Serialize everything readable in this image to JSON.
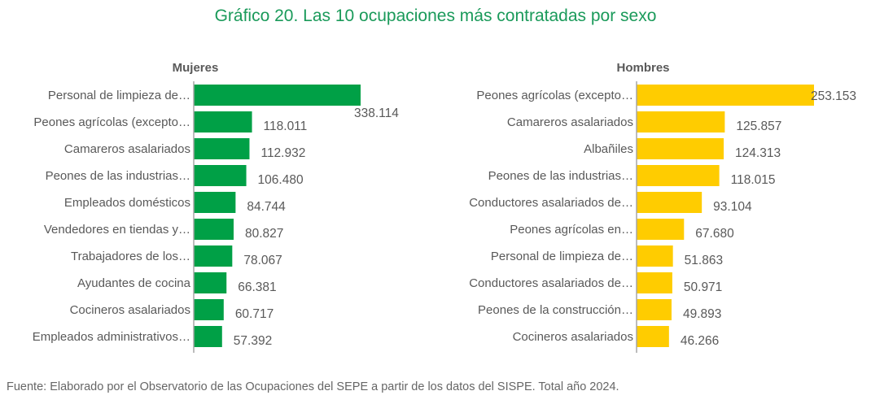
{
  "title": "Gráfico 20. Las 10 ocupaciones más contratadas por sexo",
  "source": "Fuente: Elaborado por el Observatorio de las Ocupaciones del SEPE a partir de los datos del SISPE. Total año 2024.",
  "chart_data": [
    {
      "type": "bar",
      "orientation": "horizontal",
      "title": "Mujeres",
      "color": "#00a046",
      "categories": [
        "Personal de limpieza de…",
        "Peones agrícolas (excepto…",
        "Camareros asalariados",
        "Peones de las industrias…",
        "Empleados domésticos",
        "Vendedores en tiendas y…",
        "Trabajadores de los…",
        "Ayudantes de cocina",
        "Cocineros asalariados",
        "Empleados administrativos…"
      ],
      "values": [
        338114,
        118011,
        112932,
        106480,
        84744,
        80827,
        78067,
        66381,
        60717,
        57392
      ],
      "value_labels": [
        "338.114",
        "118.011",
        "112.932",
        "106.480",
        "84.744",
        "80.827",
        "78.067",
        "66.381",
        "60.717",
        "57.392"
      ],
      "grid": false
    },
    {
      "type": "bar",
      "orientation": "horizontal",
      "title": "Hombres",
      "color": "#ffcc00",
      "categories": [
        "Peones agrícolas (excepto…",
        "Camareros asalariados",
        "Albañiles",
        "Peones de las industrias…",
        "Conductores asalariados de…",
        "Peones agrícolas en…",
        "Personal de limpieza de…",
        "Conductores asalariados de…",
        "Peones de la construcción…",
        "Cocineros asalariados"
      ],
      "values": [
        253153,
        125857,
        124313,
        118015,
        93104,
        67680,
        51863,
        50971,
        49893,
        46266
      ],
      "value_labels": [
        "253.153",
        "125.857",
        "124.313",
        "118.015",
        "93.104",
        "67.680",
        "51.863",
        "50.971",
        "49.893",
        "46.266"
      ],
      "grid": false
    }
  ]
}
